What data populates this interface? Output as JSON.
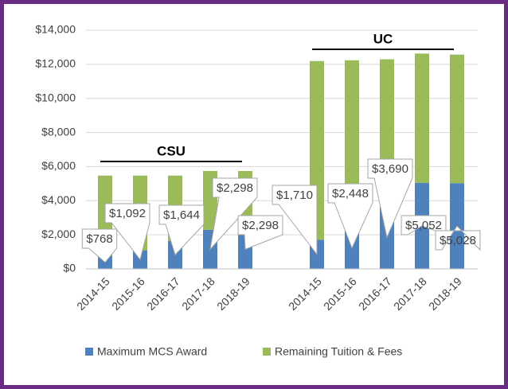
{
  "chart_data": {
    "type": "stacked_bar",
    "categories": [
      "2014-15",
      "2015-16",
      "2016-17",
      "2017-18",
      "2018-19",
      "2014-15",
      "2015-16",
      "2016-17",
      "2017-18",
      "2018-19"
    ],
    "group_labels": [
      "CSU",
      "UC"
    ],
    "series": [
      {
        "name": "Maximum MCS Award",
        "color": "#4f81bd",
        "values": [
          768,
          1092,
          1644,
          2298,
          2298,
          1710,
          2448,
          3690,
          5052,
          5028
        ],
        "value_labels": [
          "$768",
          "$1,092",
          "$1,644",
          "$2,298",
          "$2,298",
          "$1,710",
          "$2,448",
          "$3,690",
          "$5,052",
          "$5,028"
        ]
      },
      {
        "name": "Remaining Tuition & Fees",
        "color": "#9bbb59",
        "values": [
          4704,
          4380,
          3828,
          3444,
          3444,
          10482,
          9792,
          8604,
          7578,
          7542
        ]
      }
    ],
    "ylim": [
      0,
      14000
    ],
    "yticks": [
      {
        "value": 0,
        "label": "$0"
      },
      {
        "value": 2000,
        "label": "$2,000"
      },
      {
        "value": 4000,
        "label": "$4,000"
      },
      {
        "value": 6000,
        "label": "$6,000"
      },
      {
        "value": 8000,
        "label": "$8,000"
      },
      {
        "value": 10000,
        "label": "$10,000"
      },
      {
        "value": 12000,
        "label": "$12,000"
      },
      {
        "value": 14000,
        "label": "$14,000"
      }
    ],
    "grid": true
  }
}
